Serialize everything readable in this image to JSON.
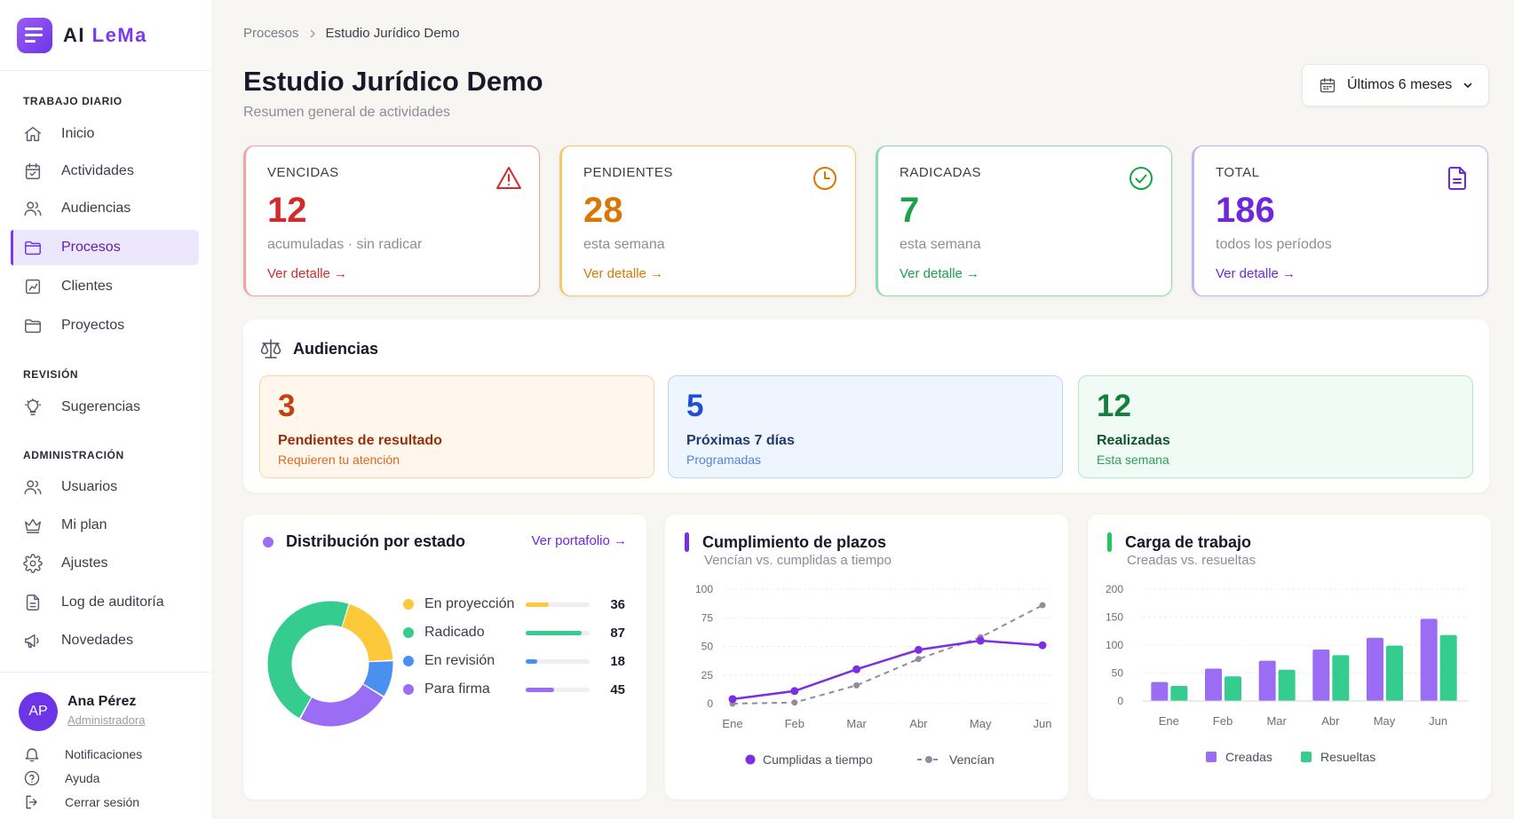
{
  "app": {
    "brand_prefix": "AI ",
    "brand_highlight": "LeMa"
  },
  "sidebar": {
    "sections": [
      {
        "title": "TRABAJO DIARIO"
      },
      {
        "title": "REVISIÓN"
      },
      {
        "title": "ADMINISTRACIÓN"
      }
    ],
    "items": [
      {
        "label": "Inicio",
        "icon": "home-icon"
      },
      {
        "label": "Actividades",
        "icon": "calendar-check-icon"
      },
      {
        "label": "Audiencias",
        "icon": "users-icon"
      },
      {
        "label": "Procesos",
        "icon": "folder-icon",
        "active": true
      },
      {
        "label": "Clientes",
        "icon": "chart-doc-icon"
      },
      {
        "label": "Proyectos",
        "icon": "folder-icon"
      },
      {
        "label": "Sugerencias",
        "icon": "lightbulb-icon"
      },
      {
        "label": "Usuarios",
        "icon": "users-icon"
      },
      {
        "label": "Mi plan",
        "icon": "crown-icon"
      },
      {
        "label": "Ajustes",
        "icon": "gear-icon"
      },
      {
        "label": "Log de auditoría",
        "icon": "document-icon"
      },
      {
        "label": "Novedades",
        "icon": "megaphone-icon"
      }
    ],
    "user": {
      "initials": "AP",
      "name": "Ana Pérez",
      "role": "Administradora"
    },
    "footer": [
      {
        "label": "Notificaciones",
        "icon": "bell-icon"
      },
      {
        "label": "Ayuda",
        "icon": "help-icon"
      },
      {
        "label": "Cerrar sesión",
        "icon": "logout-icon"
      }
    ]
  },
  "header": {
    "breadcrumb": [
      "Procesos",
      "Estudio Jurídico Demo"
    ],
    "title": "Estudio Jurídico Demo",
    "subtitle": "Resumen general de actividades",
    "period": "Últimos 6 meses"
  },
  "kpis": [
    {
      "label": "VENCIDAS",
      "value": "12",
      "sub": "acumuladas · sin radicar",
      "link": "Ver detalle →",
      "color": "#d12b2b",
      "border": "#f2a3a3",
      "icon": "alert-triangle-icon"
    },
    {
      "label": "PENDIENTES",
      "value": "28",
      "sub": "esta semana",
      "link": "Ver detalle →",
      "color": "#d97706",
      "border": "#f5c96a",
      "icon": "clock-icon"
    },
    {
      "label": "RADICADAS",
      "value": "7",
      "sub": "esta semana",
      "link": "Ver detalle →",
      "color": "#16a34a",
      "border": "#86dcb0",
      "icon": "check-circle-icon"
    },
    {
      "label": "TOTAL",
      "value": "186",
      "sub": "todos los períodos",
      "link": "Ver detalle →",
      "color": "#6d28d9",
      "border": "#c4b1f5",
      "icon": "file-icon"
    }
  ],
  "audiencias": {
    "title": "Audiencias",
    "boxes": [
      {
        "value": "3",
        "title": "Pendientes de resultado",
        "sub": "Requieren tu atención",
        "bg": "#fff6ec",
        "border": "#f8d4a8",
        "valColor": "#c2410c",
        "titleColor": "#9a2d0a",
        "subColor": "#d9691f"
      },
      {
        "value": "5",
        "title": "Próximas 7 días",
        "sub": "Programadas",
        "bg": "#eef5fe",
        "border": "#b9d6f6",
        "valColor": "#1d4ed8",
        "titleColor": "#1e3a6e",
        "subColor": "#4f86d6"
      },
      {
        "value": "12",
        "title": "Realizadas",
        "sub": "Esta semana",
        "bg": "#effbf4",
        "border": "#b4e8c9",
        "valColor": "#15803d",
        "titleColor": "#14532d",
        "subColor": "#2f9e5a"
      }
    ]
  },
  "distribucion": {
    "title": "Distribución por estado",
    "link": "Ver portafolio →",
    "items": [
      {
        "label": "En proyección",
        "count": "36",
        "value": 36,
        "color": "#fcc93a"
      },
      {
        "label": "Radicado",
        "count": "87",
        "value": 87,
        "color": "#34cc8f"
      },
      {
        "label": "En revisión",
        "count": "18",
        "value": 18,
        "color": "#4a90f0"
      },
      {
        "label": "Para firma",
        "count": "45",
        "value": 45,
        "color": "#9b6df5"
      }
    ]
  },
  "cumplimiento": {
    "title": "Cumplimiento de plazos",
    "subtitle": "Vencían vs. cumplidas a tiempo",
    "chart_data": {
      "type": "line",
      "x": [
        "Ene",
        "Feb",
        "Mar",
        "Abr",
        "May",
        "Jun"
      ],
      "ylim": [
        0,
        100
      ],
      "yticks": [
        0,
        25,
        50,
        75,
        100
      ],
      "series": [
        {
          "name": "Cumplidas a tiempo",
          "values": [
            4,
            11,
            30,
            47,
            55,
            51
          ],
          "color": "#7c2fe0"
        },
        {
          "name": "Vencían",
          "values": [
            0,
            1,
            16,
            39,
            58,
            86
          ],
          "color": "#8c8e9c"
        }
      ],
      "legend": "bottom"
    }
  },
  "carga": {
    "title": "Carga de trabajo",
    "subtitle": "Creadas vs. resueltas",
    "chart_data": {
      "type": "bar",
      "categories": [
        "Ene",
        "Feb",
        "Mar",
        "Abr",
        "May",
        "Jun"
      ],
      "ylim": [
        0,
        200
      ],
      "yticks": [
        0,
        50,
        100,
        150,
        200
      ],
      "series": [
        {
          "name": "Creadas",
          "values": [
            34,
            58,
            72,
            92,
            113,
            147
          ],
          "color": "#9b6df5"
        },
        {
          "name": "Resueltas",
          "values": [
            27,
            44,
            56,
            82,
            99,
            118
          ],
          "color": "#34cc8f"
        }
      ],
      "legend": "bottom"
    }
  }
}
